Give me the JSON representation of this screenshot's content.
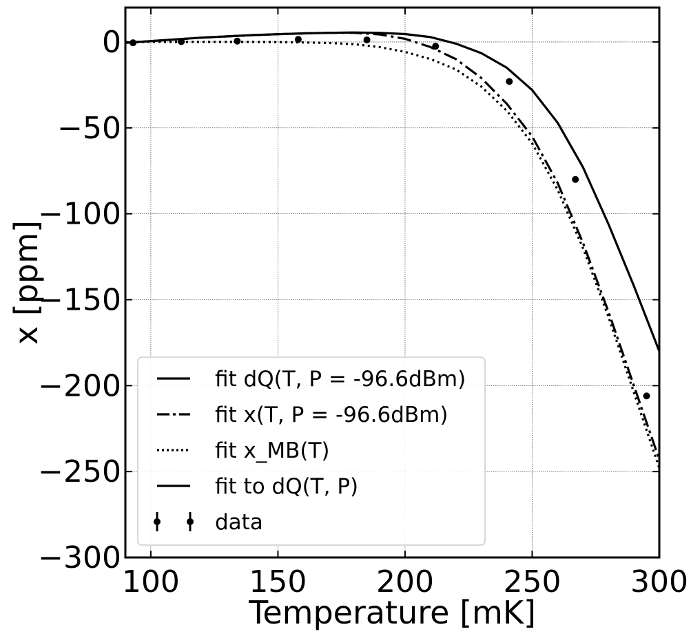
{
  "chart_data": {
    "type": "line",
    "xlabel": "Temperature [mK]",
    "ylabel": "x [ppm]",
    "xlim": [
      90,
      300
    ],
    "ylim": [
      -300,
      20
    ],
    "grid": true,
    "legend_placement": "lower-left",
    "xticks": [
      {
        "value": 100,
        "label": "100"
      },
      {
        "value": 150,
        "label": "150"
      },
      {
        "value": 200,
        "label": "200"
      },
      {
        "value": 250,
        "label": "250"
      },
      {
        "value": 300,
        "label": "300"
      }
    ],
    "yticks": [
      {
        "value": 0,
        "label": "0"
      },
      {
        "value": -50,
        "label": "−50"
      },
      {
        "value": -100,
        "label": "−100"
      },
      {
        "value": -150,
        "label": "−150"
      },
      {
        "value": -200,
        "label": "−200"
      },
      {
        "value": -250,
        "label": "−250"
      },
      {
        "value": -300,
        "label": "−300"
      }
    ],
    "series": [
      {
        "name": "fit dQ(T, P = -96.6dBm)",
        "style": "solid",
        "x": [
          90,
          100,
          110,
          120,
          130,
          140,
          150,
          160,
          170,
          180,
          190,
          200,
          210,
          220,
          230,
          240,
          250,
          260,
          270,
          280,
          290,
          300
        ],
        "y": [
          -0.5,
          0.5,
          1.5,
          2.5,
          3.2,
          4.0,
          4.5,
          5.0,
          5.3,
          5.5,
          5.3,
          4.6,
          2.8,
          -1.0,
          -6.5,
          -15,
          -28,
          -47,
          -73,
          -106,
          -142,
          -180
        ]
      },
      {
        "name": "fit x(T, P = -96.6dBm)",
        "style": "dashdot",
        "x": [
          90,
          100,
          110,
          120,
          130,
          140,
          150,
          160,
          170,
          180,
          190,
          200,
          210,
          220,
          230,
          240,
          250,
          260,
          270,
          280,
          290,
          300
        ],
        "y": [
          -0.5,
          0.5,
          1.5,
          2.5,
          3.2,
          4.0,
          4.5,
          5.0,
          5.3,
          5.3,
          4.4,
          1.8,
          -3.0,
          -10,
          -21,
          -36,
          -55,
          -82,
          -117,
          -157,
          -200,
          -243
        ]
      },
      {
        "name": "fit x_MB(T)",
        "style": "dotted",
        "x": [
          90,
          100,
          110,
          120,
          130,
          140,
          150,
          160,
          170,
          180,
          190,
          200,
          210,
          220,
          230,
          240,
          250,
          260,
          270,
          280,
          290,
          300
        ],
        "y": [
          0,
          0,
          0,
          0,
          0,
          0,
          -0.1,
          -0.3,
          -0.6,
          -1.3,
          -3,
          -5.8,
          -10,
          -16,
          -26,
          -40,
          -59,
          -86,
          -120,
          -160,
          -204,
          -248
        ]
      },
      {
        "name": "fit to dQ(T, P)",
        "style": "solid",
        "x": [],
        "y": []
      }
    ],
    "data_points": {
      "name": "data",
      "x": [
        93,
        112,
        134,
        158,
        185,
        212,
        241,
        267,
        295
      ],
      "y": [
        -0.5,
        0.2,
        0.5,
        1.5,
        1.2,
        -2.5,
        -23,
        -80,
        -206
      ]
    }
  }
}
